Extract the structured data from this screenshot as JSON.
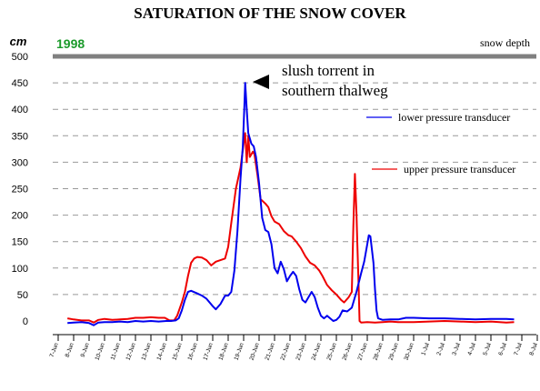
{
  "chart_data": {
    "type": "line",
    "title": "SATURATION OF THE SNOW COVER",
    "year_label": "1998",
    "year_color": "#1a9a2a",
    "y_unit": "cm",
    "ylim": [
      0,
      500
    ],
    "y_ticks": [
      0,
      50,
      100,
      150,
      200,
      250,
      300,
      350,
      400,
      450,
      500
    ],
    "grid": "horizontal dashed",
    "x_ticks": [
      "7-Jun",
      "8-Jun",
      "9-Jun",
      "10-Jun",
      "11-Jun",
      "12-Jun",
      "13-Jun",
      "14-Jun",
      "15-Jun",
      "16-Jun",
      "17-Jun",
      "18-Jun",
      "19-Jun",
      "20-Jun",
      "21-Jun",
      "22-Jun",
      "23-Jun",
      "24-Jun",
      "25-Jun",
      "26-Jun",
      "27-Jun",
      "28-Jun",
      "29-Jun",
      "30-Jun",
      "1-Jul",
      "2-Jul",
      "3-Jul",
      "4-Jul",
      "5-Jul",
      "6-Jul",
      "7-Jul",
      "8-Jul"
    ],
    "snow_depth": {
      "label": "snow depth",
      "value": 500,
      "color": "#808080"
    },
    "annotation": {
      "lines": [
        "slush torrent in",
        "southern thalweg"
      ],
      "points_to_x": 12.1,
      "points_to_y": 450
    },
    "series": [
      {
        "name": "lower pressure transducer",
        "color": "#0000ee",
        "points": [
          [
            0.6,
            -4
          ],
          [
            1.0,
            -3
          ],
          [
            1.5,
            -2
          ],
          [
            2.0,
            -4
          ],
          [
            2.3,
            -8
          ],
          [
            2.6,
            -3
          ],
          [
            3.0,
            -2
          ],
          [
            3.5,
            -2
          ],
          [
            4.0,
            -1
          ],
          [
            4.5,
            -2
          ],
          [
            5.0,
            0
          ],
          [
            5.5,
            -1
          ],
          [
            6.0,
            0
          ],
          [
            6.5,
            -1
          ],
          [
            7.0,
            0
          ],
          [
            7.3,
            0
          ],
          [
            7.6,
            1
          ],
          [
            7.8,
            5
          ],
          [
            8.0,
            20
          ],
          [
            8.2,
            40
          ],
          [
            8.4,
            55
          ],
          [
            8.6,
            57
          ],
          [
            9.0,
            52
          ],
          [
            9.3,
            48
          ],
          [
            9.6,
            42
          ],
          [
            10.0,
            28
          ],
          [
            10.2,
            22
          ],
          [
            10.5,
            32
          ],
          [
            10.8,
            48
          ],
          [
            11.0,
            48
          ],
          [
            11.2,
            55
          ],
          [
            11.4,
            95
          ],
          [
            11.6,
            170
          ],
          [
            11.8,
            270
          ],
          [
            11.95,
            330
          ],
          [
            12.05,
            410
          ],
          [
            12.1,
            450
          ],
          [
            12.2,
            400
          ],
          [
            12.3,
            355
          ],
          [
            12.5,
            335
          ],
          [
            12.65,
            330
          ],
          [
            12.8,
            310
          ],
          [
            13.0,
            260
          ],
          [
            13.2,
            195
          ],
          [
            13.4,
            172
          ],
          [
            13.6,
            168
          ],
          [
            13.8,
            145
          ],
          [
            14.0,
            100
          ],
          [
            14.2,
            90
          ],
          [
            14.4,
            112
          ],
          [
            14.6,
            98
          ],
          [
            14.8,
            75
          ],
          [
            15.0,
            85
          ],
          [
            15.2,
            93
          ],
          [
            15.4,
            85
          ],
          [
            15.6,
            60
          ],
          [
            15.8,
            40
          ],
          [
            16.0,
            35
          ],
          [
            16.2,
            45
          ],
          [
            16.4,
            55
          ],
          [
            16.6,
            45
          ],
          [
            16.8,
            25
          ],
          [
            17.0,
            10
          ],
          [
            17.2,
            5
          ],
          [
            17.4,
            10
          ],
          [
            17.6,
            5
          ],
          [
            17.8,
            0
          ],
          [
            18.0,
            2
          ],
          [
            18.2,
            8
          ],
          [
            18.4,
            20
          ],
          [
            18.7,
            18
          ],
          [
            19.0,
            25
          ],
          [
            19.3,
            55
          ],
          [
            19.6,
            90
          ],
          [
            19.8,
            112
          ],
          [
            20.0,
            145
          ],
          [
            20.1,
            162
          ],
          [
            20.2,
            160
          ],
          [
            20.3,
            135
          ],
          [
            20.4,
            110
          ],
          [
            20.5,
            60
          ],
          [
            20.6,
            20
          ],
          [
            20.7,
            5
          ],
          [
            21.0,
            2
          ],
          [
            21.5,
            3
          ],
          [
            22.0,
            3
          ],
          [
            22.5,
            6
          ],
          [
            23.0,
            6
          ],
          [
            24.0,
            5
          ],
          [
            25.0,
            5
          ],
          [
            26.0,
            4
          ],
          [
            27.0,
            3
          ],
          [
            28.0,
            4
          ],
          [
            29.0,
            4
          ],
          [
            29.5,
            3
          ]
        ]
      },
      {
        "name": "upper pressure transducer",
        "color": "#ee0000",
        "points": [
          [
            0.6,
            5
          ],
          [
            1.0,
            3
          ],
          [
            1.5,
            1
          ],
          [
            2.0,
            1
          ],
          [
            2.3,
            -3
          ],
          [
            2.6,
            2
          ],
          [
            3.0,
            4
          ],
          [
            3.5,
            2
          ],
          [
            4.0,
            3
          ],
          [
            4.5,
            4
          ],
          [
            5.0,
            6
          ],
          [
            5.5,
            6
          ],
          [
            6.0,
            7
          ],
          [
            6.5,
            6
          ],
          [
            6.9,
            6
          ],
          [
            7.2,
            1
          ],
          [
            7.5,
            1
          ],
          [
            7.7,
            10
          ],
          [
            8.0,
            35
          ],
          [
            8.2,
            55
          ],
          [
            8.4,
            85
          ],
          [
            8.6,
            110
          ],
          [
            8.8,
            118
          ],
          [
            9.0,
            121
          ],
          [
            9.3,
            120
          ],
          [
            9.6,
            115
          ],
          [
            9.9,
            105
          ],
          [
            10.2,
            112
          ],
          [
            10.5,
            115
          ],
          [
            10.8,
            118
          ],
          [
            11.0,
            140
          ],
          [
            11.2,
            185
          ],
          [
            11.5,
            250
          ],
          [
            11.8,
            290
          ],
          [
            12.0,
            335
          ],
          [
            12.1,
            355
          ],
          [
            12.2,
            300
          ],
          [
            12.3,
            350
          ],
          [
            12.4,
            310
          ],
          [
            12.6,
            320
          ],
          [
            12.7,
            315
          ],
          [
            12.9,
            275
          ],
          [
            13.1,
            230
          ],
          [
            13.4,
            222
          ],
          [
            13.6,
            215
          ],
          [
            13.8,
            198
          ],
          [
            14.0,
            188
          ],
          [
            14.3,
            183
          ],
          [
            14.6,
            170
          ],
          [
            14.9,
            162
          ],
          [
            15.1,
            160
          ],
          [
            15.4,
            150
          ],
          [
            15.7,
            138
          ],
          [
            16.0,
            122
          ],
          [
            16.3,
            110
          ],
          [
            16.6,
            105
          ],
          [
            16.9,
            95
          ],
          [
            17.1,
            85
          ],
          [
            17.4,
            68
          ],
          [
            17.7,
            58
          ],
          [
            18.0,
            50
          ],
          [
            18.3,
            40
          ],
          [
            18.5,
            35
          ],
          [
            18.8,
            45
          ],
          [
            19.0,
            55
          ],
          [
            19.1,
            180
          ],
          [
            19.2,
            278
          ],
          [
            19.3,
            205
          ],
          [
            19.35,
            150
          ],
          [
            19.45,
            60
          ],
          [
            19.5,
            0
          ],
          [
            19.6,
            -3
          ],
          [
            20.0,
            -2
          ],
          [
            20.5,
            -3
          ],
          [
            21.0,
            -2
          ],
          [
            21.5,
            -1
          ],
          [
            22.0,
            -2
          ],
          [
            23.0,
            -2
          ],
          [
            24.0,
            -1
          ],
          [
            25.0,
            0
          ],
          [
            26.0,
            -1
          ],
          [
            27.0,
            -2
          ],
          [
            28.0,
            -1
          ],
          [
            29.0,
            -3
          ],
          [
            29.5,
            -2
          ]
        ]
      }
    ]
  }
}
